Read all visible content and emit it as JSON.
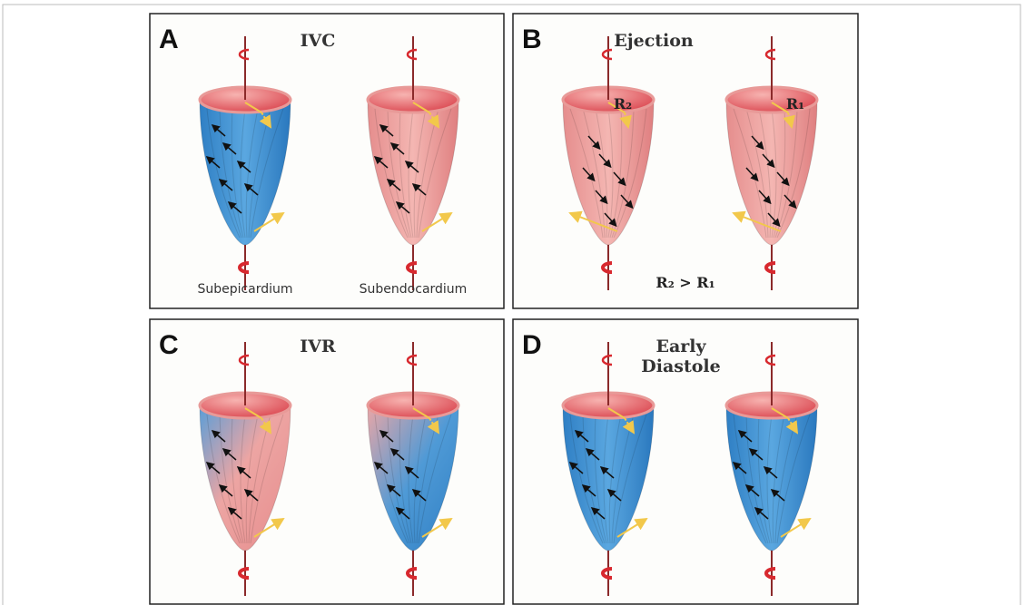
{
  "panels": [
    {
      "letter": "A",
      "title": "IVC",
      "labels": [
        "Subepicardium",
        "Subendocardium"
      ]
    },
    {
      "letter": "B",
      "title": "Ejection",
      "labels": [
        "R₂",
        "R₁",
        "R₂ > R₁"
      ]
    },
    {
      "letter": "C",
      "title": "IVR"
    },
    {
      "letter": "D",
      "title_lines": [
        "Early",
        "Diastole"
      ]
    }
  ]
}
